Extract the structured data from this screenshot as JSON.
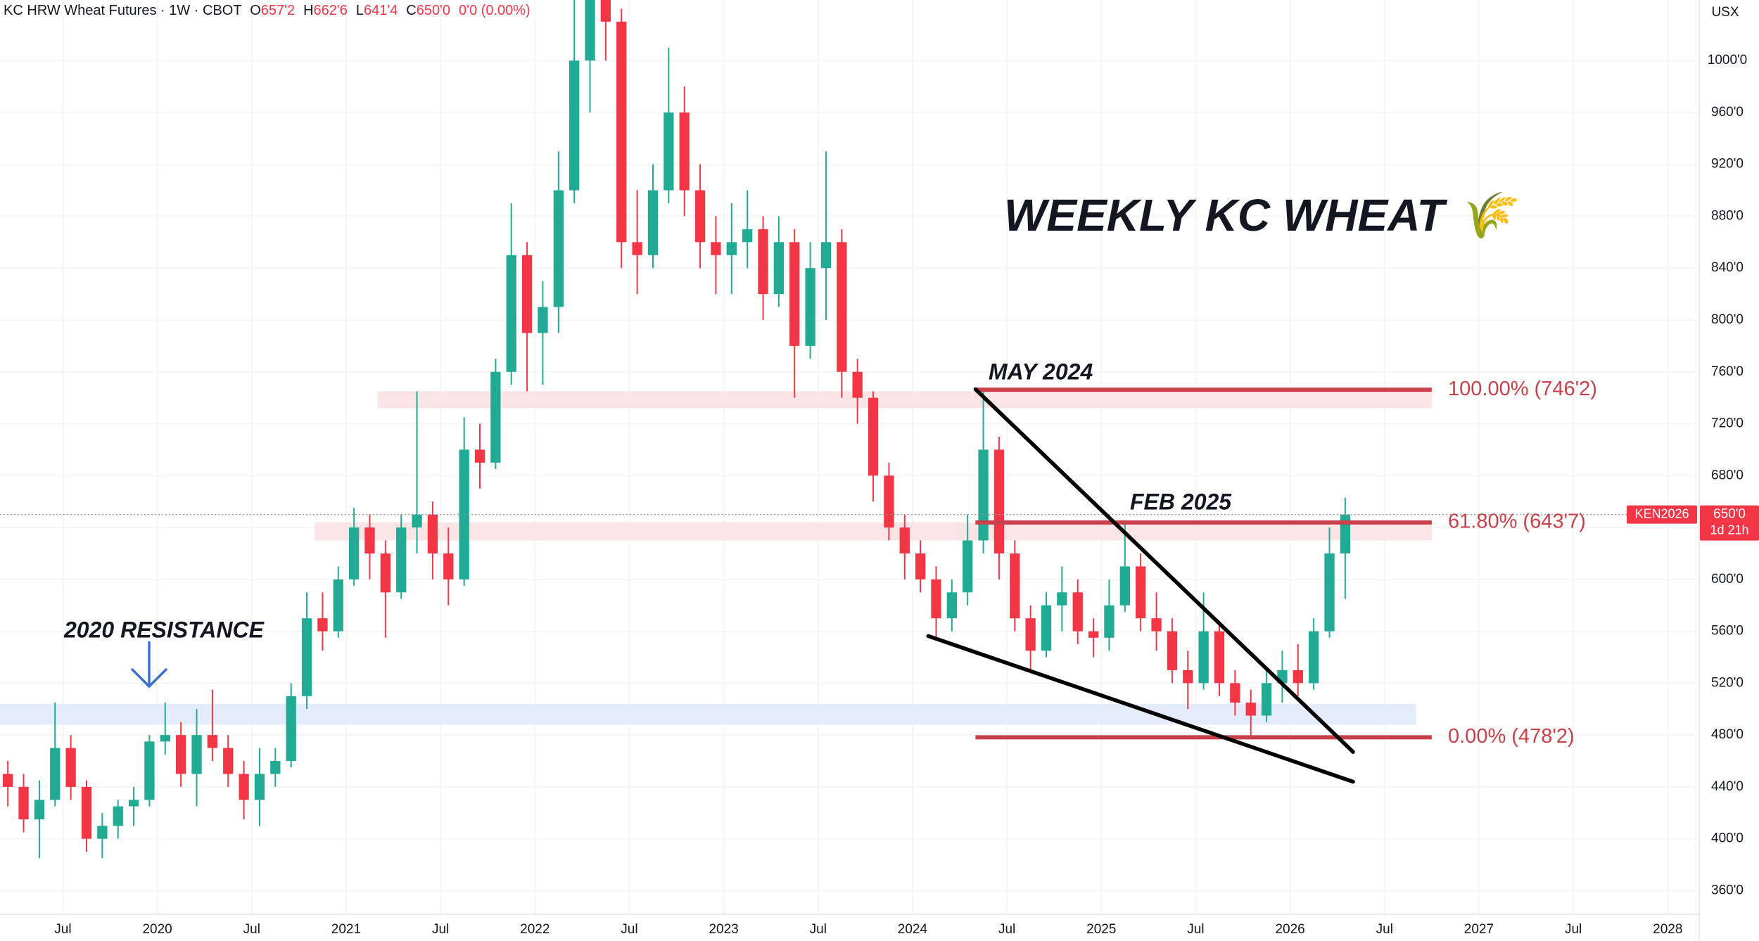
{
  "chart_data": {
    "type": "candlestick",
    "header": {
      "name": "KC HRW Wheat Futures · 1W · CBOT",
      "items": [
        {
          "key": "O",
          "value": "657'2"
        },
        {
          "key": "H",
          "value": "662'6"
        },
        {
          "key": "L",
          "value": "641'4"
        },
        {
          "key": "C",
          "value": "650'0"
        }
      ],
      "change": "0'0 (0.00%)"
    },
    "currency": "USX",
    "title": "WEEKLY KC WHEAT 🌾",
    "annotations": {
      "may": "MAY 2024",
      "feb": "FEB 2025",
      "resistance": "2020 RESISTANCE"
    },
    "x": [
      "2019-03",
      "2019-04",
      "2019-05",
      "2019-06",
      "2019-07",
      "2019-08",
      "2019-09",
      "2019-10",
      "2019-11",
      "2019-12",
      "2020-01",
      "2020-02",
      "2020-03",
      "2020-04",
      "2020-05",
      "2020-06",
      "2020-07",
      "2020-08",
      "2020-09",
      "2020-10",
      "2020-11",
      "2020-12",
      "2021-01",
      "2021-02",
      "2021-03",
      "2021-04",
      "2021-05",
      "2021-06",
      "2021-07",
      "2021-08",
      "2021-09",
      "2021-10",
      "2021-11",
      "2021-12",
      "2022-01",
      "2022-02",
      "2022-03",
      "2022-04",
      "2022-05",
      "2022-06",
      "2022-07",
      "2022-08",
      "2022-09",
      "2022-10",
      "2022-11",
      "2022-12",
      "2023-01",
      "2023-02",
      "2023-03",
      "2023-04",
      "2023-05",
      "2023-06",
      "2023-07",
      "2023-08",
      "2023-09",
      "2023-10",
      "2023-11",
      "2023-12",
      "2024-01",
      "2024-02",
      "2024-03",
      "2024-04",
      "2024-05",
      "2024-06",
      "2024-07",
      "2024-08",
      "2024-09",
      "2024-10",
      "2024-11",
      "2024-12",
      "2025-01",
      "2025-02",
      "2025-03",
      "2025-04",
      "2025-05",
      "2025-06",
      "2025-07",
      "2025-08",
      "2025-09",
      "2025-10",
      "2025-11",
      "2025-12",
      "2026-01",
      "2026-02",
      "2026-03",
      "2026-04"
    ],
    "open": [
      450,
      440,
      415,
      430,
      470,
      440,
      400,
      410,
      425,
      430,
      475,
      480,
      450,
      480,
      470,
      450,
      430,
      450,
      460,
      510,
      570,
      560,
      600,
      640,
      620,
      590,
      640,
      650,
      620,
      600,
      700,
      690,
      760,
      850,
      790,
      810,
      900,
      1000,
      1050,
      1030,
      860,
      850,
      900,
      960,
      900,
      860,
      850,
      860,
      870,
      820,
      860,
      780,
      840,
      860,
      760,
      740,
      680,
      640,
      620,
      600,
      570,
      590,
      630,
      700,
      620,
      570,
      545,
      580,
      590,
      560,
      555,
      580,
      610,
      570,
      560,
      530,
      520,
      560,
      520,
      505,
      495,
      520,
      530,
      520,
      560,
      620
    ],
    "high": [
      460,
      450,
      445,
      505,
      480,
      445,
      420,
      430,
      440,
      480,
      505,
      490,
      500,
      515,
      480,
      460,
      470,
      470,
      520,
      590,
      590,
      610,
      655,
      650,
      630,
      650,
      745,
      660,
      640,
      725,
      720,
      770,
      890,
      860,
      830,
      930,
      1060,
      1080,
      1080,
      1040,
      900,
      920,
      1010,
      980,
      920,
      880,
      890,
      900,
      880,
      880,
      870,
      860,
      930,
      870,
      770,
      745,
      690,
      650,
      630,
      610,
      600,
      650,
      746,
      710,
      630,
      580,
      590,
      610,
      600,
      570,
      600,
      644,
      620,
      590,
      570,
      545,
      590,
      565,
      530,
      515,
      530,
      545,
      550,
      570,
      640,
      663
    ],
    "low": [
      425,
      405,
      385,
      425,
      430,
      390,
      385,
      400,
      410,
      425,
      465,
      440,
      425,
      460,
      440,
      415,
      410,
      440,
      455,
      500,
      545,
      555,
      595,
      600,
      555,
      585,
      620,
      600,
      580,
      595,
      670,
      685,
      750,
      745,
      750,
      790,
      890,
      960,
      1000,
      840,
      820,
      840,
      890,
      880,
      840,
      820,
      820,
      840,
      800,
      810,
      740,
      770,
      800,
      740,
      720,
      660,
      630,
      600,
      590,
      555,
      560,
      580,
      620,
      600,
      560,
      530,
      540,
      560,
      550,
      540,
      545,
      575,
      560,
      545,
      520,
      500,
      515,
      510,
      495,
      478,
      490,
      505,
      510,
      515,
      555,
      585
    ],
    "close": [
      440,
      415,
      430,
      470,
      440,
      400,
      410,
      425,
      430,
      475,
      480,
      450,
      480,
      470,
      450,
      430,
      450,
      460,
      510,
      570,
      560,
      600,
      640,
      620,
      590,
      640,
      650,
      620,
      600,
      700,
      690,
      760,
      850,
      790,
      810,
      900,
      1000,
      1050,
      1030,
      860,
      850,
      900,
      960,
      900,
      860,
      850,
      860,
      870,
      820,
      860,
      780,
      840,
      860,
      760,
      740,
      680,
      640,
      620,
      600,
      570,
      590,
      630,
      700,
      620,
      570,
      545,
      580,
      590,
      560,
      555,
      580,
      610,
      570,
      560,
      530,
      520,
      560,
      520,
      505,
      495,
      520,
      530,
      520,
      560,
      620,
      650
    ],
    "up_color": "#22ab94",
    "down_color": "#f23645",
    "xlim": [
      "2019-03",
      "2028-03"
    ],
    "ylim": [
      341.8,
      1046.7
    ],
    "xticks": [
      {
        "value": "2019-07",
        "label": "Jul"
      },
      {
        "value": "2020-01",
        "label": "2020"
      },
      {
        "value": "2020-07",
        "label": "Jul"
      },
      {
        "value": "2021-01",
        "label": "2021"
      },
      {
        "value": "2021-07",
        "label": "Jul"
      },
      {
        "value": "2022-01",
        "label": "2022"
      },
      {
        "value": "2022-07",
        "label": "Jul"
      },
      {
        "value": "2023-01",
        "label": "2023"
      },
      {
        "value": "2023-07",
        "label": "Jul"
      },
      {
        "value": "2024-01",
        "label": "2024"
      },
      {
        "value": "2024-07",
        "label": "Jul"
      },
      {
        "value": "2025-01",
        "label": "2025"
      },
      {
        "value": "2025-07",
        "label": "Jul"
      },
      {
        "value": "2026-01",
        "label": "2026"
      },
      {
        "value": "2026-07",
        "label": "Jul"
      },
      {
        "value": "2027-01",
        "label": "2027"
      },
      {
        "value": "2027-07",
        "label": "Jul"
      },
      {
        "value": "2028-01",
        "label": "2028"
      }
    ],
    "yticks": [
      {
        "value": 360,
        "label": "360'0"
      },
      {
        "value": 400,
        "label": "400'0"
      },
      {
        "value": 440,
        "label": "440'0"
      },
      {
        "value": 480,
        "label": "480'0"
      },
      {
        "value": 520,
        "label": "520'0"
      },
      {
        "value": 560,
        "label": "560'0"
      },
      {
        "value": 600,
        "label": "600'0"
      },
      {
        "value": 640,
        "label": "640'0"
      },
      {
        "value": 680,
        "label": "680'0"
      },
      {
        "value": 720,
        "label": "720'0"
      },
      {
        "value": 760,
        "label": "760'0"
      },
      {
        "value": 800,
        "label": "800'0"
      },
      {
        "value": 840,
        "label": "840'0"
      },
      {
        "value": 880,
        "label": "880'0"
      },
      {
        "value": 920,
        "label": "920'0"
      },
      {
        "value": 960,
        "label": "960'0"
      },
      {
        "value": 1000,
        "label": "1000'0"
      }
    ],
    "grid": true,
    "last_price": {
      "value": 650,
      "label": "650'0",
      "symbol": "KEN2026",
      "countdown": "1d 21h"
    },
    "zones": [
      {
        "from": "2021-03",
        "to": "2026-10",
        "low": 732,
        "high": 745,
        "color": "#fbe4e5"
      },
      {
        "from": "2020-11",
        "to": "2026-10",
        "low": 630,
        "high": 644,
        "color": "#fbe4e5"
      },
      {
        "from": "2019-03",
        "to": "2026-09",
        "low": 488,
        "high": 504,
        "color": "#e4ebfb"
      }
    ],
    "fib": {
      "from": "2024-05",
      "to": "2026-10",
      "color": "#c8414a",
      "levels": [
        {
          "value": 746.25,
          "label": "100.00% (746'2)"
        },
        {
          "value": 643.875,
          "label": "61.80% (643'7)"
        },
        {
          "value": 478.25,
          "label": "0.00% (478'2)"
        }
      ]
    },
    "trendlines": [
      {
        "x": [
          "2024-05",
          "2026-05"
        ],
        "y": [
          746.6,
          467
        ],
        "color": "#000000"
      },
      {
        "x": [
          "2024-02",
          "2026-05"
        ],
        "y": [
          556.3,
          444
        ],
        "color": "#000000"
      }
    ]
  }
}
